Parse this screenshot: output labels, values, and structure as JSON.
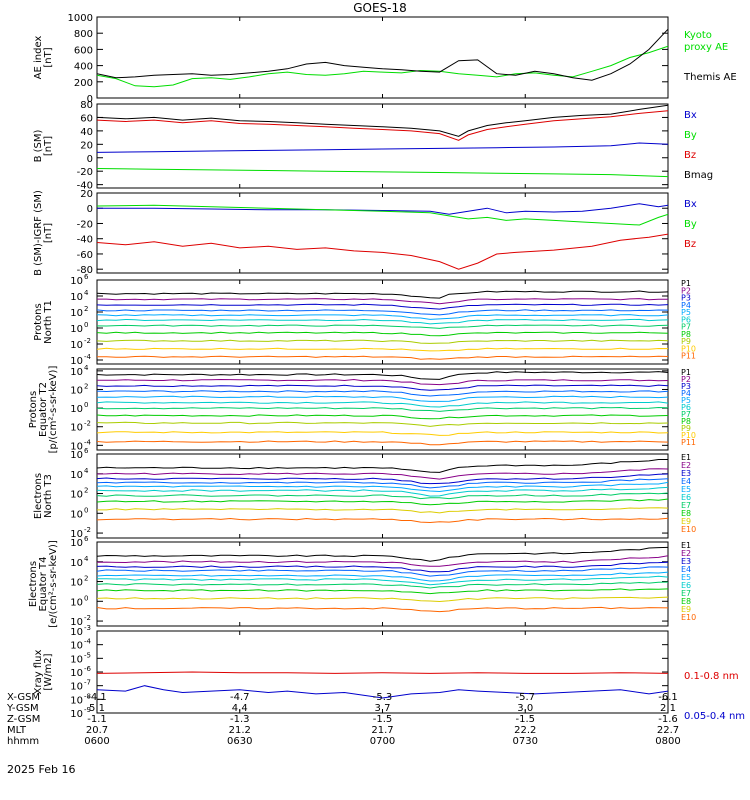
{
  "title": "GOES-18",
  "colors": {
    "black": "#000000",
    "blue": "#0000cc",
    "green": "#00dd00",
    "red": "#dd0000",
    "p_series": [
      "#000000",
      "#880088",
      "#0000cc",
      "#0066ff",
      "#00aaff",
      "#00cccc",
      "#00cc66",
      "#00cc00",
      "#aacc00",
      "#ffcc00",
      "#ff6600"
    ],
    "e_series": [
      "#000000",
      "#880088",
      "#0000cc",
      "#0066ff",
      "#00aaff",
      "#00cccc",
      "#00cc66",
      "#00cc00",
      "#ddcc00",
      "#ff6600",
      "#dd0000"
    ]
  },
  "chart_data": [
    {
      "id": "ae",
      "type": "line",
      "ylabel": [
        "AE index",
        "[nT]"
      ],
      "ylim": [
        0,
        1000
      ],
      "scale": "linear",
      "yticks": [
        0,
        200,
        400,
        600,
        800,
        1000
      ],
      "legend": [
        {
          "text": "Kyoto",
          "color": "#00dd00"
        },
        {
          "text": "proxy AE",
          "color": "#00dd00"
        },
        {
          "text": "Themis AE",
          "color": "#000000"
        }
      ],
      "series": [
        {
          "color": "#00dd00",
          "x": [
            0,
            4,
            8,
            12,
            16,
            20,
            24,
            28,
            32,
            36,
            40,
            44,
            48,
            52,
            56,
            60,
            64,
            68,
            72,
            76,
            80,
            84,
            88,
            92,
            96,
            100,
            104,
            108,
            112,
            116,
            120
          ],
          "values": [
            280,
            240,
            150,
            140,
            160,
            240,
            250,
            230,
            260,
            300,
            320,
            290,
            280,
            300,
            330,
            320,
            310,
            340,
            330,
            300,
            280,
            260,
            300,
            310,
            280,
            260,
            330,
            400,
            500,
            560,
            640
          ]
        },
        {
          "color": "#000000",
          "x": [
            0,
            4,
            8,
            12,
            16,
            20,
            24,
            28,
            32,
            36,
            40,
            44,
            48,
            52,
            56,
            60,
            64,
            68,
            72,
            76,
            80,
            84,
            88,
            92,
            96,
            100,
            104,
            108,
            112,
            116,
            120
          ],
          "values": [
            300,
            250,
            260,
            280,
            290,
            300,
            280,
            290,
            310,
            330,
            360,
            420,
            440,
            400,
            380,
            360,
            350,
            330,
            320,
            460,
            470,
            300,
            280,
            330,
            300,
            250,
            220,
            300,
            420,
            600,
            850
          ]
        }
      ]
    },
    {
      "id": "bsm",
      "type": "line",
      "ylabel": [
        "B (SM)",
        "[nT]"
      ],
      "ylim": [
        -45,
        80
      ],
      "scale": "linear",
      "yticks": [
        -40,
        -20,
        0,
        20,
        40,
        60,
        80
      ],
      "legend": [
        {
          "text": "Bx",
          "color": "#0000cc"
        },
        {
          "text": "By",
          "color": "#00dd00"
        },
        {
          "text": "Bz",
          "color": "#dd0000"
        },
        {
          "text": "Bmag",
          "color": "#000000"
        }
      ],
      "series": [
        {
          "color": "#000000",
          "x": [
            0,
            6,
            12,
            18,
            24,
            30,
            36,
            42,
            48,
            54,
            60,
            66,
            72,
            76,
            78,
            82,
            86,
            90,
            96,
            102,
            108,
            114,
            120
          ],
          "values": [
            60,
            58,
            60,
            56,
            59,
            55,
            54,
            52,
            50,
            48,
            46,
            44,
            40,
            32,
            40,
            48,
            52,
            55,
            60,
            63,
            65,
            72,
            78
          ]
        },
        {
          "color": "#dd0000",
          "x": [
            0,
            6,
            12,
            18,
            24,
            30,
            36,
            42,
            48,
            54,
            60,
            66,
            72,
            76,
            78,
            82,
            86,
            90,
            96,
            102,
            108,
            114,
            120
          ],
          "values": [
            56,
            54,
            56,
            52,
            55,
            51,
            50,
            48,
            46,
            44,
            42,
            40,
            36,
            26,
            34,
            42,
            46,
            50,
            55,
            58,
            61,
            66,
            70
          ]
        },
        {
          "color": "#0000cc",
          "x": [
            0,
            12,
            24,
            36,
            48,
            60,
            72,
            84,
            96,
            108,
            114,
            120
          ],
          "values": [
            8,
            9,
            10,
            11,
            12,
            13,
            14,
            15,
            16,
            18,
            22,
            20
          ]
        },
        {
          "color": "#00dd00",
          "x": [
            0,
            12,
            24,
            36,
            48,
            60,
            72,
            84,
            96,
            108,
            120
          ],
          "values": [
            -16,
            -17,
            -18,
            -19,
            -20,
            -21,
            -22,
            -23,
            -24,
            -25,
            -28
          ]
        }
      ]
    },
    {
      "id": "bdiff",
      "type": "line",
      "ylabel": [
        "B (SM)-IGRF (SM)",
        "[nT]"
      ],
      "ylim": [
        -85,
        20
      ],
      "scale": "linear",
      "yticks": [
        -80,
        -60,
        -40,
        -20,
        0,
        20
      ],
      "legend": [
        {
          "text": "Bx",
          "color": "#0000cc"
        },
        {
          "text": "By",
          "color": "#00dd00"
        },
        {
          "text": "Bz",
          "color": "#dd0000"
        }
      ],
      "series": [
        {
          "color": "#0000cc",
          "x": [
            0,
            12,
            24,
            36,
            48,
            60,
            70,
            74,
            78,
            82,
            86,
            90,
            96,
            102,
            108,
            114,
            118,
            120
          ],
          "values": [
            0,
            0,
            -1,
            -2,
            -2,
            -3,
            -4,
            -8,
            -4,
            0,
            -6,
            -4,
            -5,
            -4,
            0,
            6,
            2,
            4
          ]
        },
        {
          "color": "#00dd00",
          "x": [
            0,
            12,
            24,
            36,
            48,
            60,
            70,
            74,
            78,
            82,
            86,
            90,
            96,
            102,
            108,
            114,
            118,
            120
          ],
          "values": [
            3,
            4,
            2,
            0,
            -2,
            -4,
            -6,
            -10,
            -14,
            -12,
            -16,
            -14,
            -16,
            -18,
            -20,
            -22,
            -12,
            -8
          ]
        },
        {
          "color": "#dd0000",
          "x": [
            0,
            6,
            12,
            18,
            24,
            30,
            36,
            42,
            48,
            54,
            60,
            66,
            72,
            76,
            80,
            84,
            88,
            96,
            104,
            110,
            116,
            120
          ],
          "values": [
            -45,
            -48,
            -44,
            -50,
            -46,
            -52,
            -50,
            -54,
            -52,
            -56,
            -58,
            -62,
            -70,
            -80,
            -72,
            -60,
            -58,
            -55,
            -50,
            -42,
            -38,
            -34
          ]
        }
      ]
    },
    {
      "id": "p_north",
      "type": "line",
      "ylabel": [
        "Protons",
        "North T1"
      ],
      "ylim_log": [
        -4.5,
        6
      ],
      "scale": "log",
      "ytick_exps": [
        -4,
        -2,
        0,
        2,
        4,
        6
      ],
      "legend_labels": [
        "P1",
        "P2",
        "P3",
        "P4",
        "P5",
        "P6",
        "P7",
        "P8",
        "P9",
        "P10",
        "P11"
      ],
      "series_base": [
        4.3,
        3.6,
        2.9,
        2.2,
        1.6,
        1.0,
        0.3,
        -0.6,
        -1.6,
        -2.6,
        -3.6
      ]
    },
    {
      "id": "p_eq",
      "type": "line",
      "ylabel": [
        "Protons",
        "Equator T2",
        "[p/(cm²-s-sr-keV)]"
      ],
      "ylim_log": [
        -4.5,
        4.2
      ],
      "scale": "log",
      "ytick_exps": [
        -4,
        -2,
        0,
        2,
        4
      ],
      "legend_labels": [
        "P1",
        "P2",
        "P3",
        "P4",
        "P5",
        "P6",
        "P7",
        "P8",
        "P9",
        "P10",
        "P11"
      ],
      "series_base": [
        3.6,
        3.0,
        2.4,
        1.8,
        1.2,
        0.6,
        0.0,
        -0.8,
        -1.6,
        -2.6,
        -3.6
      ]
    },
    {
      "id": "e_north",
      "type": "line",
      "ylabel": [
        "Electrons",
        "North T3"
      ],
      "ylim_log": [
        -2.5,
        6
      ],
      "scale": "log",
      "ytick_exps": [
        -2,
        0,
        2,
        4,
        6
      ],
      "legend_labels": [
        "E1",
        "E2",
        "E3",
        "E4",
        "E5",
        "E6",
        "E7",
        "E8",
        "E9",
        "E10"
      ],
      "series_base": [
        4.6,
        4.0,
        3.5,
        3.1,
        2.7,
        2.3,
        1.8,
        1.2,
        0.4,
        -0.6
      ]
    },
    {
      "id": "e_eq",
      "type": "line",
      "ylabel": [
        "Electrons",
        "Equator T4",
        "[e/(cm²-s-sr-keV)]"
      ],
      "ylim_log": [
        -2.5,
        6
      ],
      "scale": "log",
      "ytick_exps": [
        -2,
        0,
        2,
        4,
        6
      ],
      "legend_labels": [
        "E1",
        "E2",
        "E3",
        "E4",
        "E5",
        "E6",
        "E7",
        "E8",
        "E9",
        "E10"
      ],
      "series_base": [
        4.6,
        4.0,
        3.5,
        3.1,
        2.6,
        2.2,
        1.7,
        1.1,
        0.3,
        -0.7
      ]
    },
    {
      "id": "xray",
      "type": "line",
      "ylabel": [
        "Xray flux",
        "[W/m2]"
      ],
      "ylim_log": [
        -9,
        -3
      ],
      "scale": "log",
      "ytick_exps": [
        -9,
        -8,
        -7,
        -6,
        -5,
        -4,
        -3
      ],
      "legend": [
        {
          "text": "0.1-0.8 nm",
          "color": "#dd0000"
        },
        {
          "text": "0.05-0.4 nm",
          "color": "#0000cc"
        }
      ],
      "series": [
        {
          "color": "#dd0000",
          "x": [
            0,
            10,
            20,
            30,
            40,
            50,
            60,
            70,
            80,
            90,
            100,
            110,
            120
          ],
          "values": [
            -6.1,
            -6.05,
            -6.0,
            -6.05,
            -6.05,
            -6.1,
            -6.05,
            -6.1,
            -6.05,
            -6.1,
            -6.1,
            -6.05,
            -6.1
          ]
        },
        {
          "color": "#0000cc",
          "x": [
            0,
            6,
            10,
            14,
            18,
            24,
            30,
            36,
            40,
            46,
            52,
            56,
            60,
            66,
            72,
            76,
            80,
            86,
            92,
            98,
            104,
            110,
            116,
            120
          ],
          "values": [
            -7.3,
            -7.4,
            -7.0,
            -7.3,
            -7.5,
            -7.4,
            -7.3,
            -7.5,
            -7.4,
            -7.6,
            -7.5,
            -7.7,
            -7.9,
            -7.6,
            -7.5,
            -7.3,
            -7.4,
            -7.5,
            -7.6,
            -7.5,
            -7.4,
            -7.3,
            -7.6,
            -7.4
          ]
        }
      ]
    }
  ],
  "xaxis": {
    "range": [
      0,
      120
    ],
    "tick_positions": [
      0,
      30,
      60,
      90,
      120
    ],
    "rows": [
      {
        "label": "X-GSM",
        "values": [
          "-4.1",
          "-4.7",
          "-5.3",
          "-5.7",
          "-6.1"
        ]
      },
      {
        "label": "Y-GSM",
        "values": [
          "5.1",
          "4.4",
          "3.7",
          "3.0",
          "2.1"
        ]
      },
      {
        "label": "Z-GSM",
        "values": [
          "-1.1",
          "-1.3",
          "-1.5",
          "-1.5",
          "-1.6"
        ]
      },
      {
        "label": "MLT",
        "values": [
          "20.7",
          "21.2",
          "21.7",
          "22.2",
          "22.7"
        ]
      },
      {
        "label": "hhmm",
        "values": [
          "0600",
          "0630",
          "0700",
          "0730",
          "0800"
        ]
      }
    ],
    "date": "2025 Feb 16"
  }
}
